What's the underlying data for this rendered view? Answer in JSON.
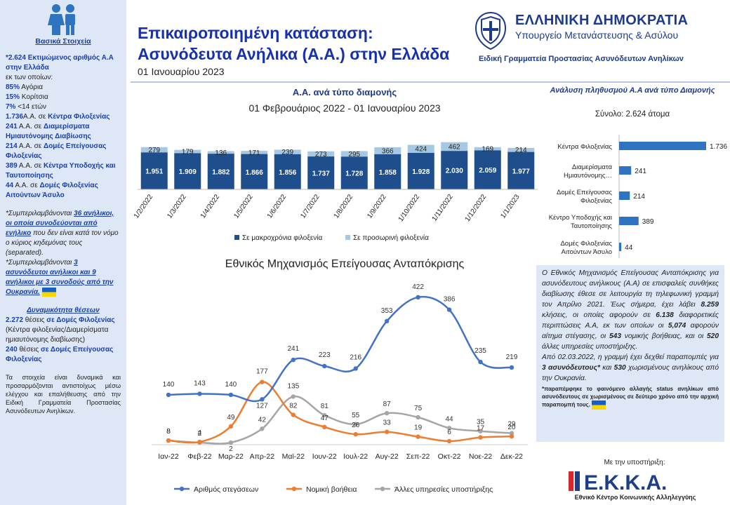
{
  "sidebar": {
    "heading": "Βασικά Στοιχεία",
    "total_value": "*2.624",
    "total_text": " Εκτιμώμενος αριθμός Α.Α στην Ελλάδα",
    "of_which": "εκ των οποίων:",
    "boys_value": "85%",
    "boys_text": " Αγόρια",
    "girls_value": "15%",
    "girls_text": " Κορίτσια",
    "under7_value": "7%",
    "under7_text": " <14 ετών",
    "s1_value": "1.736",
    "s1_pre": "Α.Α. σε ",
    "s1_name": "Κέντρα Φιλοξενίας",
    "s2_value": "241",
    "s2_pre": " Α.Α. σε ",
    "s2_name": "Διαμερίσματα Ημιαυτόνομης Διαβίωσης",
    "s3_value": "214",
    "s3_pre": " Α.Α. σε ",
    "s3_name": "Δομές Επείγουσας Φιλοξενίας",
    "s4_value": "389",
    "s4_pre": " Α.Α. σε ",
    "s4_name": "Κέντρα Υποδοχής και Ταυτοποίησης",
    "s5_value": "44",
    "s5_pre": " Α.Α. σε ",
    "s5_name": "Δομές Φιλοξενίας Αιτούντων Άσυλο",
    "note1_a": "*Συμπεριλαμβάνονται ",
    "note1_b": "36 ανήλικοι, οι οποία συνοδεύονται από ενήλικο",
    "note1_c": " που δεν είναι κατά τον νόμο ο κύριος κηδεμόνας τους (separated).",
    "note2_a": "*Συμπεριλαμβάνονται ",
    "note2_b": "3 ασυνόδευτοι ανήλικοι και 9 ανήλικοι με 3 συνοδούς από την Ουκρανία.",
    "capacity_heading": "Δυναμικότητα θέσεων",
    "cap1_value": "2.272",
    "cap1_pre": " θέσεις ",
    "cap1_name": "σε Δομές Φιλοξενίας",
    "cap1_rest": " (Κέντρα φιλοξενίας/Διαμερίσματα ημιαυτόνομης διαβίωσης)",
    "cap2_value": "240",
    "cap2_pre": " θέσεις ",
    "cap2_name": "σε Δομές Επείγουσας Φιλοξενίας",
    "disclaimer": "Τα στοιχεία είναι δυναμικά και προσαρμόζονται αντιστοίχως μέσω ελέγχου και επαλήθευσης από την Ειδική Γραμματεία Προστασίας Ασυνόδευτων Ανηλίκων."
  },
  "header": {
    "title_line1": "Επικαιροποιημένη κατάσταση:",
    "title_line2": "Ασυνόδευτα Ανήλικα (Α.Α.) στην Ελλάδα",
    "date": "01 Ιανουαρίου 2023",
    "gov_name": "ΕΛΛΗΝΙΚΗ ΔΗΜΟΚΡΑΤΙΑ",
    "ministry": "Υπουργείο Μετανάστευσης & Ασύλου",
    "secretariat": "Ειδική Γραμματεία Προστασίας Ασυνόδευτων Ανηλίκων"
  },
  "chart_data": [
    {
      "type": "bar",
      "stacked": true,
      "title": "Α.Α. ανά τύπο διαμονής",
      "subtitle": "01 Φεβρουάριος 2022 - 01 Ιανουαρίου 2023",
      "categories": [
        "1/2/2022",
        "1/3/2022",
        "1/4/2022",
        "1/5/2022",
        "1/6/2022",
        "1/7/2022",
        "1/8/2022",
        "1/9/2022",
        "1/10/2022",
        "1/11/2022",
        "1/12/2022",
        "1/1/2023"
      ],
      "series": [
        {
          "name": "Σε μακροχρόνια φιλοξενία",
          "color": "#1f4e8c",
          "values": [
            1951,
            1909,
            1882,
            1866,
            1856,
            1737,
            1728,
            1858,
            1928,
            2030,
            2059,
            1977
          ],
          "labels": [
            "1.951",
            "1.909",
            "1.882",
            "1.866",
            "1.856",
            "1.737",
            "1.728",
            "1.858",
            "1.928",
            "2.030",
            "2.059",
            "1.977"
          ]
        },
        {
          "name": "Σε προσωρινή φιλοξενία",
          "color": "#a7c8e2",
          "values": [
            279,
            179,
            136,
            171,
            239,
            273,
            295,
            366,
            424,
            462,
            169,
            214
          ],
          "labels": [
            "279",
            "179",
            "136",
            "171",
            "239",
            "273",
            "295",
            "366",
            "424",
            "462",
            "169",
            "214"
          ]
        }
      ],
      "legend": "bottom"
    },
    {
      "type": "bar",
      "orientation": "horizontal",
      "title": "Ανάλυση πληθυσμού Α.Α ανά τύπο Διαμονής",
      "subtitle": "Σύνολο: 2.624 άτομα",
      "categories": [
        [
          "Κέντρα Φιλοξενίας"
        ],
        [
          "Διαμερίσματα",
          "Ημιαυτόνομης…"
        ],
        [
          "Δομές Επείγουσας",
          "Φιλοξενίας"
        ],
        [
          "Κέντρο Υποδοχής και",
          "Ταυτοποίησης"
        ],
        [
          "Δομές Φιλοξενίας",
          "Αιτούντων Άσυλο"
        ]
      ],
      "values": [
        1736,
        241,
        214,
        389,
        44
      ],
      "labels": [
        "1.736",
        "241",
        "214",
        "389",
        "44"
      ],
      "color": "#2e74c0"
    },
    {
      "type": "line",
      "title": "Εθνικός Μηχανισμός Επείγουσας Ανταπόκρισης",
      "categories": [
        "Ιαν-22",
        "Φεβ-22",
        "Μαρ-22",
        "Απρ-22",
        "Μαϊ-22",
        "Ιουν-22",
        "Ιουλ-22",
        "Αυγ-22",
        "Σεπ-22",
        "Οκτ-22",
        "Νοε-22",
        "Δεκ-22"
      ],
      "series": [
        {
          "name": "Αριθμός στεγάσεων",
          "color": "#4472c4",
          "values": [
            140,
            143,
            140,
            127,
            241,
            223,
            216,
            353,
            422,
            386,
            235,
            219
          ]
        },
        {
          "name": "Νομική βοήθεια",
          "color": "#ed7d31",
          "values": [
            8,
            4,
            49,
            177,
            82,
            47,
            26,
            33,
            19,
            6,
            17,
            20
          ]
        },
        {
          "name": "Άλλες υπηρεσίες υποστήριξης",
          "color": "#a5a5a5",
          "values": [
            8,
            2,
            2,
            42,
            135,
            81,
            55,
            87,
            75,
            44,
            35,
            29
          ]
        }
      ],
      "ylim": [
        0,
        450
      ],
      "legend": "bottom"
    }
  ],
  "info": {
    "p1_a": "Ο Εθνικός Μηχανισμός Επείγουσας Ανταπόκρισης για ασυνόδευτους ανήλικους (Α.Α) σε επισφαλείς συνθήκες διαβίωσης έθεσε σε λειτουργία τη τηλεφωνική γραμμή τον Απρίλιο 2021. Έως σήμερα, έχει λάβει ",
    "p1_calls": "8.259",
    "p1_b": " κλήσεις, οι οποίες αφορούν σε ",
    "p1_cases": "6.138",
    "p1_c": " διαφορετικές περιπτώσεις Α.Α, εκ των οποίων οι ",
    "p1_shelter": "5,074",
    "p1_d": " αφορούν αίτημα στέγασης, οι ",
    "p1_legal": "543",
    "p1_e": " νομικής βοήθειας, και οι ",
    "p1_other": "520",
    "p1_f": " άλλες υπηρεσίες υποστήριξης.",
    "p2_a": "Από 02.03.2022, η γραμμή έχει δεχθεί παραπομπές για ",
    "p2_b": "3 ασυνόδευτους*",
    "p2_c": " και ",
    "p2_d": "530",
    "p2_e": " χωρισμένους ανηλίκους από την Ουκρανία.",
    "note": "*παραπέμφηκε το φαινόμενο αλλαγής status ανηλίκων από ασυνόδευτους σε χωρισμένους σε δεύτερο χρόνο από την αρχική παραπομπή τους."
  },
  "support": {
    "label": "Με την υποστήριξη:",
    "logo_text": "Ε.Κ.Κ.Α.",
    "org": "Εθνικό Κέντρο Κοινωνικής Αλληλεγγύης",
    "logo_colors": {
      "red": "#d9262b",
      "blue": "#1f3e8a"
    }
  },
  "icons": [
    "children-icon",
    "greek-emblem-icon",
    "ukraine-flag-icon",
    "ekka-logo"
  ]
}
